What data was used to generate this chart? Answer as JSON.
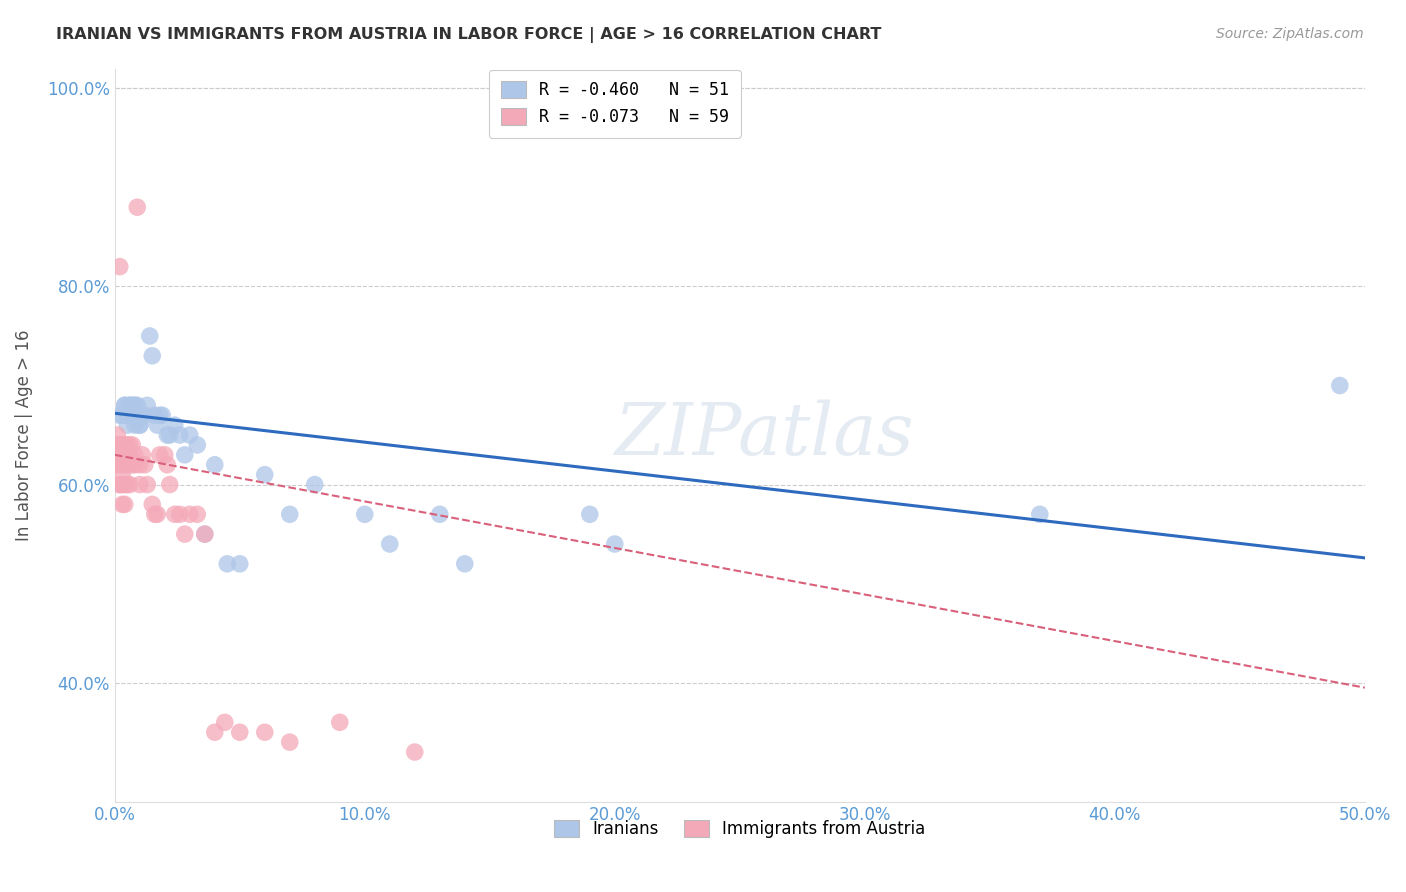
{
  "title": "IRANIAN VS IMMIGRANTS FROM AUSTRIA IN LABOR FORCE | AGE > 16 CORRELATION CHART",
  "source": "Source: ZipAtlas.com",
  "ylabel": "In Labor Force | Age > 16",
  "xlim": [
    0.0,
    0.5
  ],
  "ylim": [
    0.28,
    1.02
  ],
  "ytick_labels": [
    "40.0%",
    "60.0%",
    "80.0%",
    "100.0%"
  ],
  "ytick_values": [
    0.4,
    0.6,
    0.8,
    1.0
  ],
  "xtick_labels": [
    "0.0%",
    "10.0%",
    "20.0%",
    "30.0%",
    "40.0%",
    "50.0%"
  ],
  "xtick_values": [
    0.0,
    0.1,
    0.2,
    0.3,
    0.4,
    0.5
  ],
  "legend_entries": [
    {
      "label": "R = -0.460   N = 51",
      "color": "#aec6e8"
    },
    {
      "label": "R = -0.073   N = 59",
      "color": "#f4a9b8"
    }
  ],
  "legend_bottom_labels": [
    "Iranians",
    "Immigrants from Austria"
  ],
  "iranians_color": "#aec6e8",
  "iranians_line_color": "#2e6bbf",
  "austria_color": "#f4a9b8",
  "austria_line_color": "#d9607a",
  "title_color": "#333333",
  "axis_color": "#5b9bd5",
  "grid_color": "#cccccc",
  "iranians_line": [
    0.0,
    0.672,
    0.5,
    0.526
  ],
  "austria_line": [
    0.0,
    0.63,
    0.5,
    0.395
  ],
  "iranians_x": [
    0.002,
    0.003,
    0.004,
    0.004,
    0.005,
    0.005,
    0.006,
    0.006,
    0.007,
    0.007,
    0.007,
    0.008,
    0.008,
    0.008,
    0.009,
    0.009,
    0.009,
    0.01,
    0.01,
    0.01,
    0.011,
    0.012,
    0.013,
    0.014,
    0.015,
    0.016,
    0.017,
    0.018,
    0.019,
    0.021,
    0.022,
    0.024,
    0.026,
    0.028,
    0.03,
    0.033,
    0.036,
    0.04,
    0.045,
    0.05,
    0.06,
    0.07,
    0.08,
    0.1,
    0.11,
    0.13,
    0.14,
    0.19,
    0.2,
    0.37,
    0.49
  ],
  "iranians_y": [
    0.67,
    0.67,
    0.68,
    0.68,
    0.66,
    0.67,
    0.68,
    0.68,
    0.68,
    0.67,
    0.67,
    0.68,
    0.68,
    0.66,
    0.68,
    0.67,
    0.67,
    0.66,
    0.66,
    0.67,
    0.67,
    0.67,
    0.68,
    0.75,
    0.73,
    0.67,
    0.66,
    0.67,
    0.67,
    0.65,
    0.65,
    0.66,
    0.65,
    0.63,
    0.65,
    0.64,
    0.55,
    0.62,
    0.52,
    0.52,
    0.61,
    0.57,
    0.6,
    0.57,
    0.54,
    0.57,
    0.52,
    0.57,
    0.54,
    0.57,
    0.7
  ],
  "austria_x": [
    0.001,
    0.001,
    0.001,
    0.001,
    0.001,
    0.002,
    0.002,
    0.002,
    0.002,
    0.002,
    0.002,
    0.003,
    0.003,
    0.003,
    0.003,
    0.003,
    0.003,
    0.004,
    0.004,
    0.004,
    0.004,
    0.004,
    0.005,
    0.005,
    0.005,
    0.005,
    0.006,
    0.006,
    0.006,
    0.007,
    0.007,
    0.008,
    0.008,
    0.009,
    0.01,
    0.01,
    0.011,
    0.012,
    0.013,
    0.015,
    0.016,
    0.017,
    0.018,
    0.02,
    0.021,
    0.022,
    0.024,
    0.026,
    0.028,
    0.03,
    0.033,
    0.036,
    0.04,
    0.044,
    0.05,
    0.06,
    0.07,
    0.09,
    0.12
  ],
  "austria_y": [
    0.65,
    0.64,
    0.63,
    0.63,
    0.62,
    0.64,
    0.63,
    0.62,
    0.6,
    0.6,
    0.82,
    0.64,
    0.63,
    0.62,
    0.61,
    0.6,
    0.58,
    0.64,
    0.63,
    0.62,
    0.6,
    0.58,
    0.64,
    0.63,
    0.62,
    0.6,
    0.64,
    0.63,
    0.6,
    0.64,
    0.62,
    0.63,
    0.62,
    0.88,
    0.62,
    0.6,
    0.63,
    0.62,
    0.6,
    0.58,
    0.57,
    0.57,
    0.63,
    0.63,
    0.62,
    0.6,
    0.57,
    0.57,
    0.55,
    0.57,
    0.57,
    0.55,
    0.35,
    0.36,
    0.35,
    0.35,
    0.34,
    0.36,
    0.33
  ],
  "watermark": "ZIPatlas",
  "background_color": "#ffffff"
}
